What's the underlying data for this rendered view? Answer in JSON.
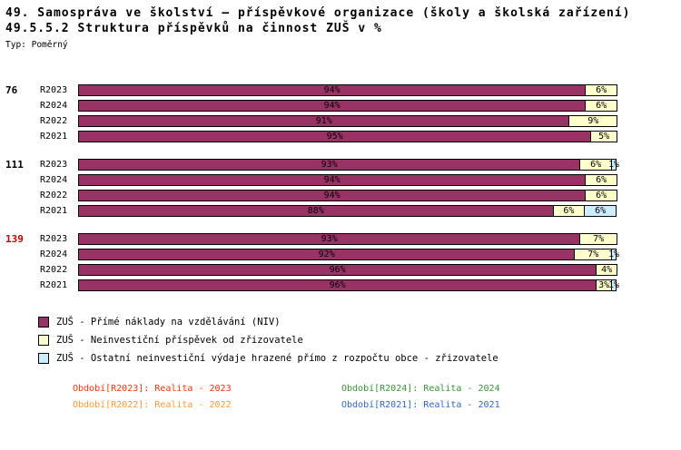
{
  "title": "49. Samospráva ve školství – příspěvkové organizace (školy a školská zařízení)",
  "subtitle": "49.5.5.2 Struktura příspěvků na činnost ZUŠ v %",
  "type_label": "Typ: Poměrný",
  "chart_data": {
    "type": "bar",
    "orientation": "horizontal",
    "stacked": true,
    "xlim": [
      0,
      100
    ],
    "value_suffix": "%",
    "series": [
      {
        "name": "ZUŠ - Přímé náklady na vzdělávání (NIV)",
        "color": "#993366"
      },
      {
        "name": "ZUŠ - Neinvestiční příspěvek od zřizovatele",
        "color": "#FFFFCC"
      },
      {
        "name": "ZUŠ - Ostatní neinvestiční výdaje hrazené přímo z rozpočtu obce - zřizovatele",
        "color": "#CCECFF"
      }
    ],
    "groups": [
      {
        "label": "76",
        "label_color": "#000000",
        "rows": [
          {
            "label": "R2023",
            "values": [
              94,
              6,
              0
            ]
          },
          {
            "label": "R2024",
            "values": [
              94,
              6,
              0
            ]
          },
          {
            "label": "R2022",
            "values": [
              91,
              9,
              0
            ]
          },
          {
            "label": "R2021",
            "values": [
              95,
              5,
              0
            ]
          }
        ]
      },
      {
        "label": "111",
        "label_color": "#000000",
        "rows": [
          {
            "label": "R2023",
            "values": [
              93,
              6,
              1
            ]
          },
          {
            "label": "R2024",
            "values": [
              94,
              6,
              0
            ]
          },
          {
            "label": "R2022",
            "values": [
              94,
              6,
              0
            ]
          },
          {
            "label": "R2021",
            "values": [
              88,
              6,
              6
            ]
          }
        ]
      },
      {
        "label": "139",
        "label_color": "#CC0000",
        "rows": [
          {
            "label": "R2023",
            "values": [
              93,
              7,
              0
            ]
          },
          {
            "label": "R2024",
            "values": [
              92,
              7,
              1
            ]
          },
          {
            "label": "R2022",
            "values": [
              96,
              4,
              0
            ]
          },
          {
            "label": "R2021",
            "values": [
              96,
              3,
              1
            ]
          }
        ]
      }
    ]
  },
  "footnotes": [
    {
      "text": "Období[R2023]: Realita - 2023",
      "color": "#FF3300"
    },
    {
      "text": "Období[R2024]: Realita - 2024",
      "color": "#339933"
    },
    {
      "text": "Období[R2022]: Realita - 2022",
      "color": "#FF9933"
    },
    {
      "text": "Období[R2021]: Realita - 2021",
      "color": "#3366CC"
    }
  ]
}
